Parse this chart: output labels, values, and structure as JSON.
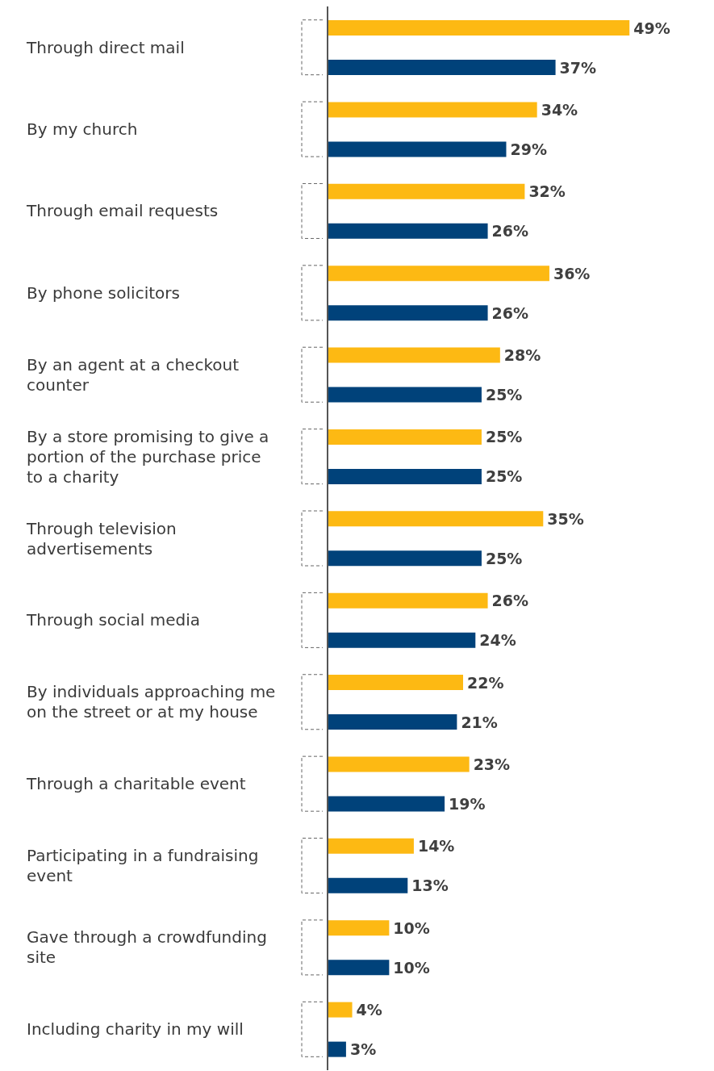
{
  "chart_data": {
    "type": "bar",
    "orientation": "horizontal",
    "categories": [
      "Through direct mail",
      "By my church",
      "Through email requests",
      "By phone solicitors",
      "By an agent at a checkout counter",
      "By a store promising to give a portion of the purchase price to a charity",
      "Through television advertisements",
      "Through social media",
      "By individuals approaching me on the street or at my house",
      "Through a charitable event",
      "Participating in a fundraising event",
      "Gave through a crowdfunding site",
      "Including charity in my will"
    ],
    "series": [
      {
        "color": "#fdb913",
        "values": [
          49,
          34,
          32,
          36,
          28,
          25,
          35,
          26,
          22,
          23,
          14,
          10,
          4
        ],
        "value_labels": [
          "49%",
          "34%",
          "32%",
          "36%",
          "28%",
          "25%",
          "35%",
          "26%",
          "22%",
          "23%",
          "14%",
          "10%",
          "4%"
        ]
      },
      {
        "color": "#00427a",
        "values": [
          37,
          29,
          26,
          26,
          25,
          25,
          25,
          24,
          21,
          19,
          13,
          10,
          3
        ],
        "value_labels": [
          "37%",
          "29%",
          "26%",
          "26%",
          "25%",
          "25%",
          "25%",
          "24%",
          "21%",
          "19%",
          "13%",
          "10%",
          "3%"
        ]
      }
    ]
  }
}
